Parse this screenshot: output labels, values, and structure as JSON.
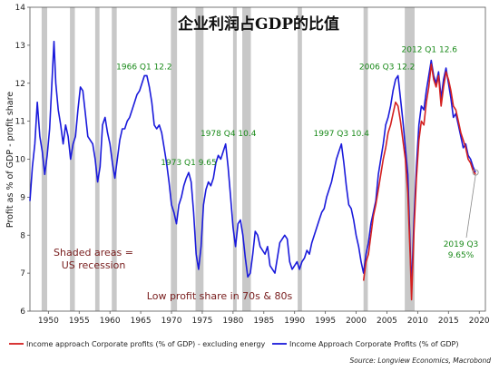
{
  "chart_data": {
    "type": "line",
    "title": "企业利润占GDP的比值",
    "ylabel": "Profit as % of GDP - profit share",
    "xlim": [
      1947,
      2021
    ],
    "ylim": [
      6,
      14
    ],
    "x_ticks": [
      1950,
      1955,
      1960,
      1965,
      1970,
      1975,
      1980,
      1985,
      1990,
      1995,
      2000,
      2005,
      2010,
      2015,
      2020
    ],
    "y_ticks": [
      6,
      7,
      8,
      9,
      10,
      11,
      12,
      13,
      14
    ],
    "recessions": [
      [
        1948.9,
        1949.8
      ],
      [
        1953.5,
        1954.3
      ],
      [
        1957.6,
        1958.3
      ],
      [
        1960.3,
        1961.1
      ],
      [
        1969.9,
        1970.9
      ],
      [
        1973.9,
        1975.2
      ],
      [
        1980.0,
        1980.6
      ],
      [
        1981.5,
        1982.9
      ],
      [
        1990.5,
        1991.2
      ],
      [
        2001.2,
        2001.9
      ],
      [
        2007.9,
        2009.5
      ]
    ],
    "series": [
      {
        "name": "Income Approach Corporate Profits (% of GDP)",
        "color": "#1a1adb",
        "points": [
          [
            1947.0,
            8.9
          ],
          [
            1947.4,
            9.8
          ],
          [
            1947.8,
            10.4
          ],
          [
            1948.2,
            11.5
          ],
          [
            1948.6,
            10.6
          ],
          [
            1949.0,
            10.2
          ],
          [
            1949.4,
            9.6
          ],
          [
            1949.8,
            10.1
          ],
          [
            1950.2,
            10.8
          ],
          [
            1950.6,
            12.1
          ],
          [
            1950.9,
            13.1
          ],
          [
            1951.2,
            12.0
          ],
          [
            1951.6,
            11.3
          ],
          [
            1952.0,
            10.9
          ],
          [
            1952.4,
            10.4
          ],
          [
            1952.8,
            10.9
          ],
          [
            1953.2,
            10.6
          ],
          [
            1953.6,
            10.0
          ],
          [
            1954.0,
            10.4
          ],
          [
            1954.4,
            10.6
          ],
          [
            1954.8,
            11.3
          ],
          [
            1955.2,
            11.9
          ],
          [
            1955.6,
            11.8
          ],
          [
            1956.0,
            11.2
          ],
          [
            1956.4,
            10.6
          ],
          [
            1956.8,
            10.5
          ],
          [
            1957.2,
            10.4
          ],
          [
            1957.6,
            10.0
          ],
          [
            1958.0,
            9.4
          ],
          [
            1958.4,
            9.8
          ],
          [
            1958.8,
            10.9
          ],
          [
            1959.2,
            11.1
          ],
          [
            1959.6,
            10.7
          ],
          [
            1960.0,
            10.4
          ],
          [
            1960.4,
            9.9
          ],
          [
            1960.8,
            9.5
          ],
          [
            1961.2,
            10.0
          ],
          [
            1961.6,
            10.5
          ],
          [
            1962.0,
            10.8
          ],
          [
            1962.4,
            10.8
          ],
          [
            1962.8,
            11.0
          ],
          [
            1963.2,
            11.1
          ],
          [
            1963.6,
            11.3
          ],
          [
            1964.0,
            11.5
          ],
          [
            1964.4,
            11.7
          ],
          [
            1964.8,
            11.8
          ],
          [
            1965.2,
            12.0
          ],
          [
            1965.6,
            12.2
          ],
          [
            1966.0,
            12.2
          ],
          [
            1966.4,
            11.9
          ],
          [
            1966.8,
            11.5
          ],
          [
            1967.2,
            10.9
          ],
          [
            1967.6,
            10.8
          ],
          [
            1968.0,
            10.9
          ],
          [
            1968.4,
            10.7
          ],
          [
            1968.8,
            10.3
          ],
          [
            1969.2,
            9.9
          ],
          [
            1969.6,
            9.4
          ],
          [
            1970.0,
            8.8
          ],
          [
            1970.4,
            8.6
          ],
          [
            1970.8,
            8.3
          ],
          [
            1971.2,
            8.8
          ],
          [
            1971.6,
            9.0
          ],
          [
            1972.0,
            9.3
          ],
          [
            1972.4,
            9.5
          ],
          [
            1972.8,
            9.65
          ],
          [
            1973.2,
            9.4
          ],
          [
            1973.6,
            8.6
          ],
          [
            1974.0,
            7.5
          ],
          [
            1974.4,
            7.1
          ],
          [
            1974.8,
            7.7
          ],
          [
            1975.2,
            8.8
          ],
          [
            1975.6,
            9.2
          ],
          [
            1976.0,
            9.4
          ],
          [
            1976.4,
            9.3
          ],
          [
            1976.8,
            9.5
          ],
          [
            1977.2,
            9.9
          ],
          [
            1977.6,
            10.1
          ],
          [
            1978.0,
            10.0
          ],
          [
            1978.4,
            10.2
          ],
          [
            1978.8,
            10.4
          ],
          [
            1979.2,
            9.8
          ],
          [
            1979.6,
            9.0
          ],
          [
            1980.0,
            8.2
          ],
          [
            1980.4,
            7.7
          ],
          [
            1980.8,
            8.3
          ],
          [
            1981.2,
            8.4
          ],
          [
            1981.6,
            8.0
          ],
          [
            1982.0,
            7.4
          ],
          [
            1982.4,
            6.9
          ],
          [
            1982.8,
            7.0
          ],
          [
            1983.2,
            7.5
          ],
          [
            1983.6,
            8.1
          ],
          [
            1984.0,
            8.0
          ],
          [
            1984.4,
            7.7
          ],
          [
            1984.8,
            7.6
          ],
          [
            1985.2,
            7.5
          ],
          [
            1985.6,
            7.7
          ],
          [
            1986.0,
            7.2
          ],
          [
            1986.4,
            7.1
          ],
          [
            1986.8,
            7.0
          ],
          [
            1987.2,
            7.4
          ],
          [
            1987.6,
            7.8
          ],
          [
            1988.0,
            7.9
          ],
          [
            1988.4,
            8.0
          ],
          [
            1988.8,
            7.9
          ],
          [
            1989.2,
            7.3
          ],
          [
            1989.6,
            7.1
          ],
          [
            1990.0,
            7.2
          ],
          [
            1990.4,
            7.3
          ],
          [
            1990.8,
            7.1
          ],
          [
            1991.2,
            7.3
          ],
          [
            1991.6,
            7.4
          ],
          [
            1992.0,
            7.6
          ],
          [
            1992.4,
            7.5
          ],
          [
            1992.8,
            7.8
          ],
          [
            1993.2,
            8.0
          ],
          [
            1993.6,
            8.2
          ],
          [
            1994.0,
            8.4
          ],
          [
            1994.4,
            8.6
          ],
          [
            1994.8,
            8.7
          ],
          [
            1995.2,
            9.0
          ],
          [
            1995.6,
            9.2
          ],
          [
            1996.0,
            9.4
          ],
          [
            1996.4,
            9.7
          ],
          [
            1996.8,
            10.0
          ],
          [
            1997.2,
            10.2
          ],
          [
            1997.6,
            10.4
          ],
          [
            1998.0,
            9.9
          ],
          [
            1998.4,
            9.3
          ],
          [
            1998.8,
            8.8
          ],
          [
            1999.2,
            8.7
          ],
          [
            1999.6,
            8.4
          ],
          [
            2000.0,
            8.0
          ],
          [
            2000.4,
            7.7
          ],
          [
            2000.8,
            7.3
          ],
          [
            2001.2,
            7.0
          ],
          [
            2001.6,
            7.5
          ],
          [
            2002.0,
            7.8
          ],
          [
            2002.4,
            8.3
          ],
          [
            2002.8,
            8.6
          ],
          [
            2003.2,
            8.9
          ],
          [
            2003.6,
            9.6
          ],
          [
            2004.0,
            10.0
          ],
          [
            2004.4,
            10.4
          ],
          [
            2004.8,
            10.9
          ],
          [
            2005.2,
            11.1
          ],
          [
            2005.6,
            11.4
          ],
          [
            2006.0,
            11.8
          ],
          [
            2006.4,
            12.1
          ],
          [
            2006.8,
            12.2
          ],
          [
            2007.2,
            11.6
          ],
          [
            2007.6,
            11.0
          ],
          [
            2008.0,
            10.3
          ],
          [
            2008.4,
            9.6
          ],
          [
            2008.8,
            7.6
          ],
          [
            2009.0,
            6.6
          ],
          [
            2009.4,
            8.4
          ],
          [
            2009.8,
            9.8
          ],
          [
            2010.2,
            10.9
          ],
          [
            2010.6,
            11.4
          ],
          [
            2011.0,
            11.3
          ],
          [
            2011.4,
            11.8
          ],
          [
            2011.8,
            12.2
          ],
          [
            2012.2,
            12.6
          ],
          [
            2012.6,
            12.2
          ],
          [
            2013.0,
            12.0
          ],
          [
            2013.4,
            12.3
          ],
          [
            2013.8,
            11.6
          ],
          [
            2014.2,
            12.1
          ],
          [
            2014.6,
            12.4
          ],
          [
            2015.0,
            12.0
          ],
          [
            2015.4,
            11.6
          ],
          [
            2015.8,
            11.1
          ],
          [
            2016.2,
            11.2
          ],
          [
            2016.6,
            10.9
          ],
          [
            2017.0,
            10.6
          ],
          [
            2017.4,
            10.3
          ],
          [
            2017.8,
            10.4
          ],
          [
            2018.2,
            10.1
          ],
          [
            2018.6,
            10.0
          ],
          [
            2019.0,
            9.8
          ],
          [
            2019.4,
            9.65
          ]
        ]
      },
      {
        "name": "Income approach Corporate profits (% of GDP)  - excluding energy",
        "color": "#d42020",
        "points": [
          [
            2001.2,
            6.8
          ],
          [
            2001.6,
            7.3
          ],
          [
            2002.0,
            7.5
          ],
          [
            2002.4,
            8.0
          ],
          [
            2002.8,
            8.5
          ],
          [
            2003.2,
            8.8
          ],
          [
            2003.6,
            9.2
          ],
          [
            2004.0,
            9.6
          ],
          [
            2004.4,
            10.0
          ],
          [
            2004.8,
            10.3
          ],
          [
            2005.2,
            10.7
          ],
          [
            2005.6,
            10.9
          ],
          [
            2006.0,
            11.2
          ],
          [
            2006.4,
            11.5
          ],
          [
            2006.8,
            11.4
          ],
          [
            2007.2,
            11.0
          ],
          [
            2007.6,
            10.5
          ],
          [
            2008.0,
            10.0
          ],
          [
            2008.4,
            9.1
          ],
          [
            2008.8,
            7.4
          ],
          [
            2009.0,
            6.3
          ],
          [
            2009.4,
            8.1
          ],
          [
            2009.8,
            9.5
          ],
          [
            2010.2,
            10.5
          ],
          [
            2010.6,
            11.0
          ],
          [
            2011.0,
            10.9
          ],
          [
            2011.4,
            11.5
          ],
          [
            2011.8,
            11.9
          ],
          [
            2012.2,
            12.5
          ],
          [
            2012.6,
            12.1
          ],
          [
            2013.0,
            11.9
          ],
          [
            2013.4,
            12.2
          ],
          [
            2013.8,
            11.4
          ],
          [
            2014.2,
            11.9
          ],
          [
            2014.6,
            12.3
          ],
          [
            2015.0,
            12.1
          ],
          [
            2015.4,
            11.8
          ],
          [
            2015.8,
            11.4
          ],
          [
            2016.2,
            11.3
          ],
          [
            2016.6,
            11.0
          ],
          [
            2017.0,
            10.7
          ],
          [
            2017.4,
            10.5
          ],
          [
            2017.8,
            10.3
          ],
          [
            2018.2,
            10.0
          ],
          [
            2018.6,
            9.9
          ],
          [
            2019.0,
            9.7
          ],
          [
            2019.4,
            9.6
          ]
        ]
      }
    ],
    "annotations": [
      {
        "text": "1966 Q1 12.2",
        "x": 1966.0,
        "y": 12.2
      },
      {
        "text": "1973 Q1 9.65",
        "x": 1972.8,
        "y": 9.65
      },
      {
        "text": "1978 Q4 10.4",
        "x": 1978.8,
        "y": 10.4
      },
      {
        "text": "1997 Q3 10.4",
        "x": 1997.6,
        "y": 10.4
      },
      {
        "text": "2006 Q3 12.2",
        "x": 2006.8,
        "y": 12.2
      },
      {
        "text": "2012 Q1 12.6",
        "x": 2012.2,
        "y": 12.6
      }
    ],
    "callout": {
      "line1": "2019 Q3",
      "line2": "9.65%",
      "x": 2019.4,
      "y": 9.65
    },
    "notes": {
      "shaded_line1": "Shaded areas =",
      "shaded_line2": "US recession",
      "low_profit": "Low profit share in 70s & 80s"
    },
    "source": "Source: Longview Economics, Macrobond"
  }
}
